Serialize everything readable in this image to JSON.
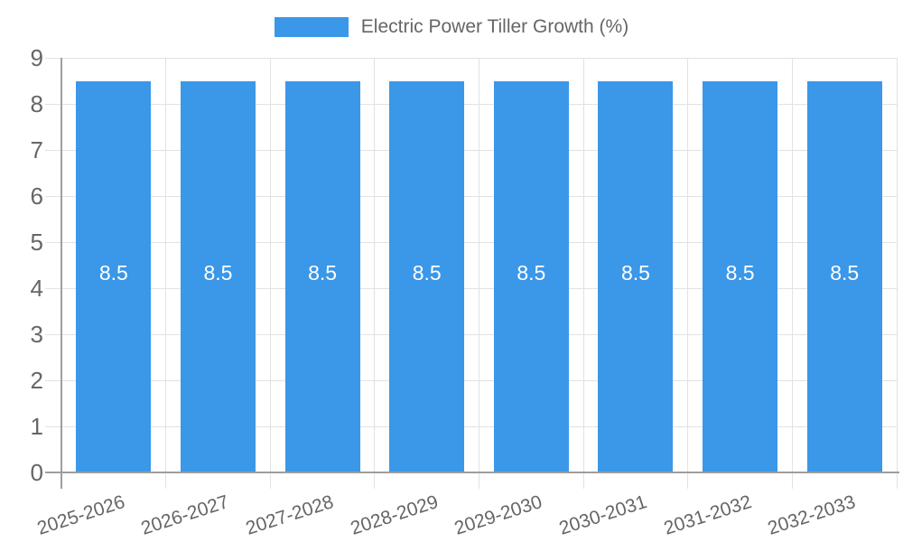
{
  "legend": {
    "items": [
      {
        "label": "Electric Power Tiller Growth (%)"
      }
    ]
  },
  "chart_data": {
    "type": "bar",
    "title": "Electric Power Tiller Growth (%)",
    "categories": [
      "2025-2026",
      "2026-2027",
      "2027-2028",
      "2028-2029",
      "2029-2030",
      "2030-2031",
      "2031-2032",
      "2032-2033"
    ],
    "series": [
      {
        "name": "Electric Power Tiller Growth (%)",
        "color": "#3B97E8",
        "values": [
          8.5,
          8.5,
          8.5,
          8.5,
          8.5,
          8.5,
          8.5,
          8.5
        ],
        "data_labels": [
          "8.5",
          "8.5",
          "8.5",
          "8.5",
          "8.5",
          "8.5",
          "8.5",
          "8.5"
        ]
      }
    ],
    "xlabel": "",
    "ylabel": "",
    "ylim": [
      0,
      9
    ],
    "y_ticks": [
      "0",
      "1",
      "2",
      "3",
      "4",
      "5",
      "6",
      "7",
      "8",
      "9"
    ],
    "grid": true,
    "legend_position": "top",
    "x_tick_rotation_deg": -18
  },
  "colors": {
    "bar": "#3B97E8",
    "text": "#666666",
    "grid": "#e2e2e2",
    "axis": "#9e9e9e",
    "bar_label": "#ffffff",
    "background": "#ffffff"
  }
}
